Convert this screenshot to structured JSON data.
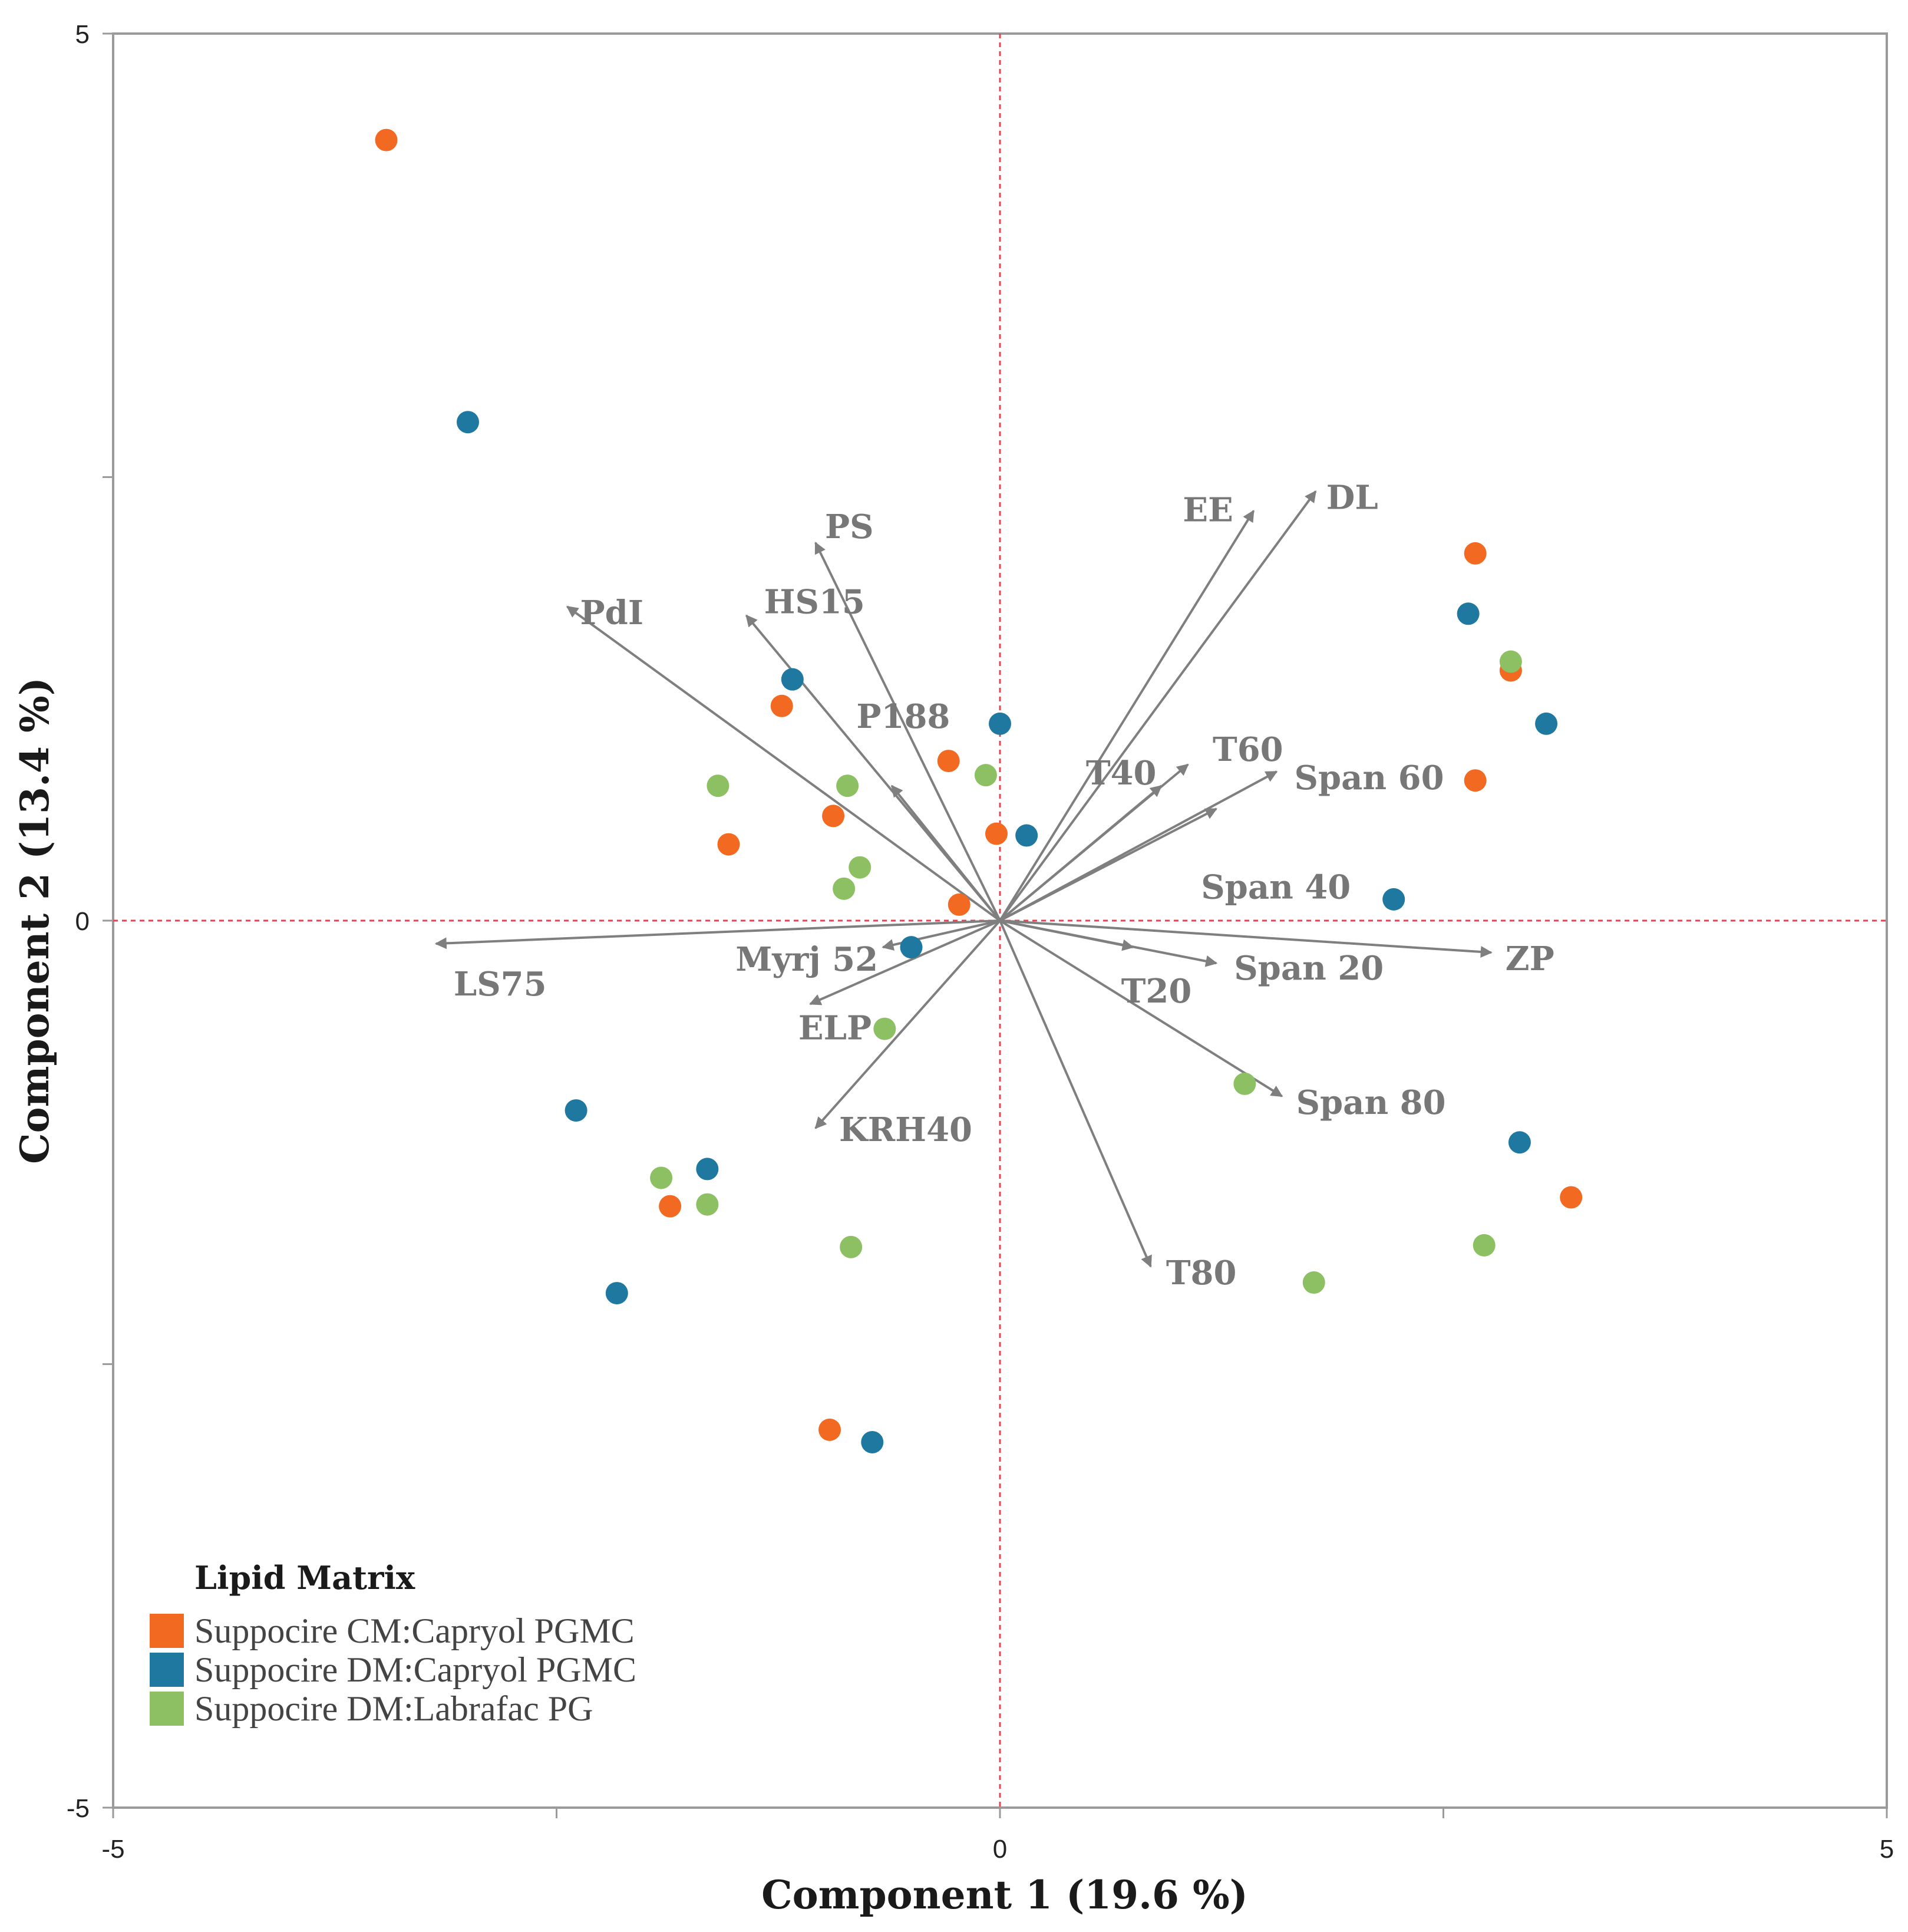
{
  "chart_data": {
    "type": "scatter",
    "subtype": "pca-biplot",
    "xlabel": "Component 1 (19.6 %)",
    "ylabel": "Component 2 (13.4 %)",
    "xlim": [
      -5,
      5
    ],
    "ylim": [
      -5,
      5
    ],
    "x_tick_labels": [
      {
        "value": -5,
        "label": "-5"
      },
      {
        "value": 0,
        "label": "0"
      },
      {
        "value": 5,
        "label": "5"
      }
    ],
    "y_tick_labels": [
      {
        "value": 5,
        "label": "5"
      },
      {
        "value": 0,
        "label": "0"
      },
      {
        "value": -5,
        "label": "-5"
      }
    ],
    "minor_ticks": [
      -2.5,
      2.5
    ],
    "zero_lines": true,
    "zero_line_color": "#e8414f",
    "arrow_color": "#7f7f7f",
    "legend": {
      "title": "Lipid Matrix",
      "position": "bottom-left"
    },
    "series": [
      {
        "name": "Suppocire CM:Capryol PGMC",
        "color": "#f26a21",
        "points": [
          [
            -3.46,
            4.4
          ],
          [
            2.68,
            2.07
          ],
          [
            2.88,
            1.41
          ],
          [
            2.68,
            0.79
          ],
          [
            -1.23,
            1.21
          ],
          [
            -0.29,
            0.9
          ],
          [
            -0.94,
            0.59
          ],
          [
            -1.53,
            0.43
          ],
          [
            -0.02,
            0.49
          ],
          [
            -0.23,
            0.09
          ],
          [
            -1.86,
            -1.61
          ],
          [
            3.22,
            -1.56
          ],
          [
            -0.96,
            -2.87
          ]
        ]
      },
      {
        "name": "Suppocire DM:Capryol PGMC",
        "color": "#1f78a0",
        "points": [
          [
            -3.0,
            2.81
          ],
          [
            2.64,
            1.73
          ],
          [
            3.08,
            1.11
          ],
          [
            -1.17,
            1.36
          ],
          [
            0.0,
            1.11
          ],
          [
            0.15,
            0.48
          ],
          [
            2.22,
            0.12
          ],
          [
            -0.5,
            -0.15
          ],
          [
            -2.39,
            -1.07
          ],
          [
            -1.65,
            -1.4
          ],
          [
            2.93,
            -1.25
          ],
          [
            -2.16,
            -2.1
          ],
          [
            -0.72,
            -2.94
          ]
        ]
      },
      {
        "name": "Suppocire DM:Labrafac PG",
        "color": "#8cc063",
        "points": [
          [
            2.88,
            1.46
          ],
          [
            -0.08,
            0.82
          ],
          [
            -1.59,
            0.76
          ],
          [
            -0.86,
            0.76
          ],
          [
            -0.79,
            0.3
          ],
          [
            -0.88,
            0.18
          ],
          [
            -0.65,
            -0.61
          ],
          [
            1.38,
            -0.92
          ],
          [
            -1.91,
            -1.45
          ],
          [
            -1.65,
            -1.6
          ],
          [
            -0.84,
            -1.84
          ],
          [
            2.73,
            -1.83
          ],
          [
            1.77,
            -2.04
          ]
        ]
      }
    ],
    "loadings": [
      {
        "name": "PS",
        "x": -1.04,
        "y": 2.13
      },
      {
        "name": "PdI",
        "x": -2.44,
        "y": 1.77
      },
      {
        "name": "HS15",
        "x": -1.43,
        "y": 1.72
      },
      {
        "name": "P188",
        "x": -0.61,
        "y": 0.76
      },
      {
        "name": "EE",
        "x": 1.43,
        "y": 2.31
      },
      {
        "name": "DL",
        "x": 1.78,
        "y": 2.42
      },
      {
        "name": "T40",
        "x": 0.91,
        "y": 0.76
      },
      {
        "name": "T60",
        "x": 1.06,
        "y": 0.88
      },
      {
        "name": "Span 60",
        "x": 1.56,
        "y": 0.84
      },
      {
        "name": "Span 40",
        "x": 1.22,
        "y": 0.63
      },
      {
        "name": "LS75",
        "x": -3.18,
        "y": -0.13
      },
      {
        "name": "Myrj 52",
        "x": -0.66,
        "y": -0.15
      },
      {
        "name": "ELP",
        "x": -1.07,
        "y": -0.47
      },
      {
        "name": "KRH40",
        "x": -1.04,
        "y": -1.17
      },
      {
        "name": "T20",
        "x": 0.75,
        "y": -0.15
      },
      {
        "name": "Span 20",
        "x": 1.22,
        "y": -0.24
      },
      {
        "name": "ZP",
        "x": 2.77,
        "y": -0.18
      },
      {
        "name": "Span 80",
        "x": 1.59,
        "y": -0.99
      },
      {
        "name": "T80",
        "x": 0.85,
        "y": -1.95
      }
    ]
  }
}
